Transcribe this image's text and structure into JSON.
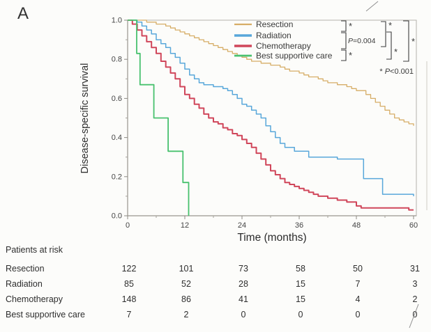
{
  "panel": {
    "label": "A"
  },
  "chart_data": {
    "type": "line",
    "subtype": "kaplan-meier-step",
    "title": "",
    "xlabel": "Time (months)",
    "ylabel": "Disease-specific survival",
    "xlim": [
      0,
      60
    ],
    "ylim": [
      0.0,
      1.0
    ],
    "xticks": [
      0,
      12,
      24,
      36,
      48,
      60
    ],
    "yticks": [
      1.0,
      0.8,
      0.6,
      0.4,
      0.2,
      0.0
    ],
    "x_minor_ticks": [
      6,
      18,
      30,
      42,
      54
    ],
    "y_minor_ticks": [
      0.1,
      0.3,
      0.5,
      0.7,
      0.9
    ],
    "grid": false,
    "legend_position": "top-right",
    "series": [
      {
        "name": "Resection",
        "color": "#d6ad66",
        "points": [
          [
            0,
            1
          ],
          [
            4,
            0.99
          ],
          [
            6,
            0.98
          ],
          [
            8,
            0.97
          ],
          [
            9,
            0.96
          ],
          [
            10,
            0.95
          ],
          [
            11,
            0.94
          ],
          [
            12,
            0.93
          ],
          [
            13,
            0.92
          ],
          [
            14,
            0.91
          ],
          [
            15,
            0.9
          ],
          [
            16,
            0.89
          ],
          [
            17,
            0.88
          ],
          [
            18,
            0.87
          ],
          [
            19,
            0.86
          ],
          [
            20,
            0.85
          ],
          [
            21,
            0.84
          ],
          [
            22,
            0.83
          ],
          [
            23,
            0.82
          ],
          [
            24,
            0.81
          ],
          [
            25,
            0.8
          ],
          [
            26,
            0.79
          ],
          [
            28,
            0.78
          ],
          [
            30,
            0.77
          ],
          [
            32,
            0.76
          ],
          [
            33,
            0.75
          ],
          [
            34,
            0.74
          ],
          [
            36,
            0.73
          ],
          [
            37,
            0.72
          ],
          [
            38,
            0.71
          ],
          [
            40,
            0.7
          ],
          [
            41,
            0.69
          ],
          [
            42,
            0.68
          ],
          [
            44,
            0.67
          ],
          [
            46,
            0.66
          ],
          [
            47,
            0.65
          ],
          [
            48,
            0.64
          ],
          [
            50,
            0.62
          ],
          [
            51,
            0.6
          ],
          [
            52,
            0.58
          ],
          [
            53,
            0.56
          ],
          [
            54,
            0.54
          ],
          [
            55,
            0.52
          ],
          [
            56,
            0.5
          ],
          [
            57,
            0.49
          ],
          [
            58,
            0.48
          ],
          [
            59,
            0.47
          ],
          [
            60,
            0.46
          ]
        ]
      },
      {
        "name": "Radiation",
        "color": "#58a7da",
        "points": [
          [
            0,
            1
          ],
          [
            2,
            0.99
          ],
          [
            3,
            0.97
          ],
          [
            4,
            0.95
          ],
          [
            5,
            0.93
          ],
          [
            6,
            0.9
          ],
          [
            7,
            0.88
          ],
          [
            8,
            0.86
          ],
          [
            9,
            0.83
          ],
          [
            10,
            0.81
          ],
          [
            11,
            0.78
          ],
          [
            12,
            0.75
          ],
          [
            13,
            0.72
          ],
          [
            14,
            0.7
          ],
          [
            15,
            0.68
          ],
          [
            16,
            0.67
          ],
          [
            18,
            0.66
          ],
          [
            20,
            0.65
          ],
          [
            21,
            0.64
          ],
          [
            22,
            0.62
          ],
          [
            23,
            0.6
          ],
          [
            24,
            0.57
          ],
          [
            25,
            0.56
          ],
          [
            26,
            0.54
          ],
          [
            27,
            0.52
          ],
          [
            28,
            0.5
          ],
          [
            29,
            0.46
          ],
          [
            30,
            0.43
          ],
          [
            31,
            0.4
          ],
          [
            32,
            0.37
          ],
          [
            33,
            0.35
          ],
          [
            35,
            0.33
          ],
          [
            38,
            0.3
          ],
          [
            44,
            0.29
          ],
          [
            49.5,
            0.19
          ],
          [
            53.5,
            0.11
          ],
          [
            60,
            0.1
          ]
        ]
      },
      {
        "name": "Chemotherapy",
        "color": "#d0465a",
        "points": [
          [
            0,
            1
          ],
          [
            1,
            0.98
          ],
          [
            2,
            0.95
          ],
          [
            3,
            0.92
          ],
          [
            4,
            0.89
          ],
          [
            5,
            0.86
          ],
          [
            6,
            0.83
          ],
          [
            7,
            0.79
          ],
          [
            8,
            0.76
          ],
          [
            9,
            0.73
          ],
          [
            10,
            0.7
          ],
          [
            11,
            0.66
          ],
          [
            12,
            0.62
          ],
          [
            13,
            0.6
          ],
          [
            14,
            0.57
          ],
          [
            15,
            0.55
          ],
          [
            16,
            0.52
          ],
          [
            17,
            0.5
          ],
          [
            18,
            0.48
          ],
          [
            19,
            0.47
          ],
          [
            20,
            0.45
          ],
          [
            21,
            0.44
          ],
          [
            22,
            0.42
          ],
          [
            23,
            0.41
          ],
          [
            24,
            0.39
          ],
          [
            25,
            0.37
          ],
          [
            26,
            0.35
          ],
          [
            27,
            0.32
          ],
          [
            28,
            0.29
          ],
          [
            29,
            0.26
          ],
          [
            30,
            0.23
          ],
          [
            31,
            0.21
          ],
          [
            32,
            0.19
          ],
          [
            33,
            0.17
          ],
          [
            34,
            0.16
          ],
          [
            35,
            0.15
          ],
          [
            36,
            0.14
          ],
          [
            37,
            0.13
          ],
          [
            38,
            0.12
          ],
          [
            39,
            0.11
          ],
          [
            40,
            0.1
          ],
          [
            42,
            0.09
          ],
          [
            44,
            0.08
          ],
          [
            46,
            0.07
          ],
          [
            48,
            0.05
          ],
          [
            49,
            0.04
          ],
          [
            59,
            0.03
          ],
          [
            60,
            0.03
          ]
        ]
      },
      {
        "name": "Best supportive care",
        "color": "#48c16e",
        "points": [
          [
            0,
            1
          ],
          [
            1.9,
            0.83
          ],
          [
            2.6,
            0.67
          ],
          [
            5.5,
            0.5
          ],
          [
            8.5,
            0.33
          ],
          [
            11.6,
            0.17
          ],
          [
            12.8,
            0
          ]
        ]
      }
    ]
  },
  "annotations": {
    "pairwise_p": "P=0.004",
    "asterisk": "*",
    "footnote": "* P<0.001"
  },
  "risk_table": {
    "header": "Patients at risk",
    "timepoints": [
      0,
      12,
      24,
      36,
      48,
      60
    ],
    "rows": [
      {
        "label": "Resection",
        "counts": [
          122,
          101,
          73,
          58,
          50,
          31
        ]
      },
      {
        "label": "Radiation",
        "counts": [
          85,
          52,
          28,
          15,
          7,
          3
        ]
      },
      {
        "label": "Chemotherapy",
        "counts": [
          148,
          86,
          41,
          15,
          4,
          2
        ]
      },
      {
        "label": "Best supportive care",
        "counts": [
          7,
          2,
          0,
          0,
          0,
          0
        ]
      }
    ]
  }
}
